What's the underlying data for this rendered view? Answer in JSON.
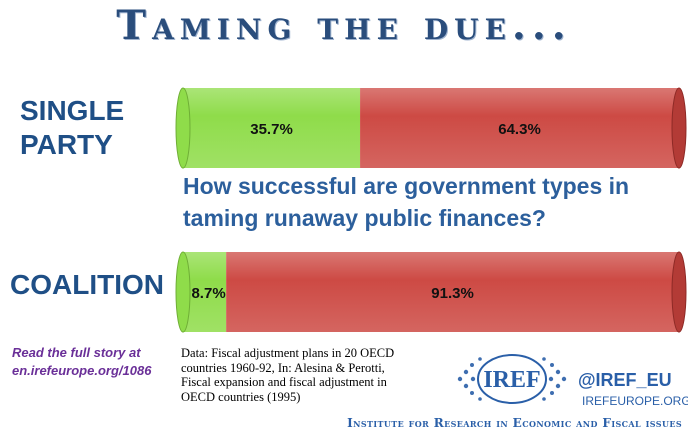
{
  "title": "Taming the due...",
  "question": "How successful are government types in taming runaway public finances?",
  "colors": {
    "success": "#8fdc4a",
    "failure": "#cd4a44",
    "title": "#2a4d7c"
  },
  "chart_data": {
    "type": "bar",
    "orientation": "horizontal",
    "stacked": true,
    "categories": [
      "SINGLE PARTY",
      "COALITION"
    ],
    "series": [
      {
        "values": [
          35.7,
          8.7
        ],
        "labels": [
          "35.7%",
          "8.7%"
        ],
        "color": "#8fdc4a"
      },
      {
        "values": [
          64.3,
          91.3
        ],
        "labels": [
          "64.3%",
          "91.3%"
        ],
        "color": "#cd4a44"
      }
    ],
    "xlim": [
      0,
      100
    ]
  },
  "read_more": "Read the full story at en.irefeurope.org/1086",
  "source": "Data:  Fiscal adjustment plans in 20 OECD countries  1960-92, In: Alesina  & Perotti, Fiscal expansion and  fiscal adjustment in OECD countries  (1995)",
  "logo_text": "IREF",
  "handle": "@IREF_EU",
  "site": "IREFEUROPE.ORG",
  "institute": "Institute for Research in Economic and Fiscal issues"
}
